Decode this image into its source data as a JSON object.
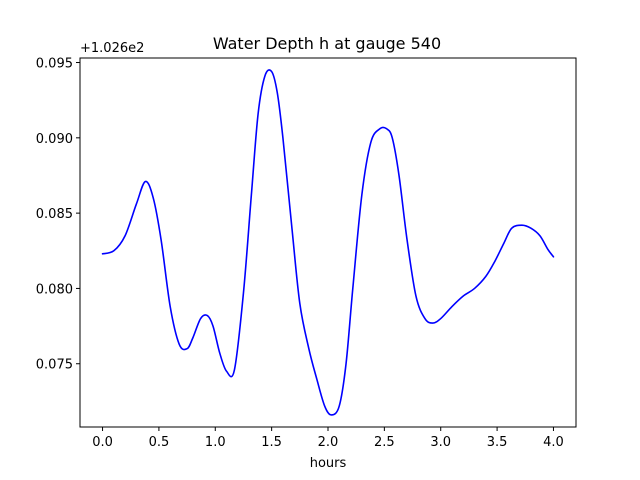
{
  "chart_data": {
    "type": "line",
    "title": "Water Depth h at gauge 540",
    "xlabel": "hours",
    "ylabel": "",
    "offset_text": "+1.026e2",
    "xlim": [
      -0.2,
      4.2
    ],
    "ylim": [
      0.0708,
      0.0953
    ],
    "xticks": [
      0.0,
      0.5,
      1.0,
      1.5,
      2.0,
      2.5,
      3.0,
      3.5,
      4.0
    ],
    "xtick_labels": [
      "0.0",
      "0.5",
      "1.0",
      "1.5",
      "2.0",
      "2.5",
      "3.0",
      "3.5",
      "4.0"
    ],
    "yticks": [
      0.075,
      0.08,
      0.085,
      0.09,
      0.095
    ],
    "ytick_labels": [
      "0.075",
      "0.080",
      "0.085",
      "0.090",
      "0.095"
    ],
    "grid": false,
    "series": [
      {
        "color": "#0000ff",
        "x": [
          0.0,
          0.1,
          0.2,
          0.3,
          0.38,
          0.45,
          0.52,
          0.6,
          0.68,
          0.75,
          0.8,
          0.87,
          0.93,
          0.98,
          1.04,
          1.1,
          1.17,
          1.25,
          1.32,
          1.38,
          1.44,
          1.5,
          1.55,
          1.6,
          1.68,
          1.75,
          1.83,
          1.9,
          1.97,
          2.03,
          2.1,
          2.16,
          2.22,
          2.3,
          2.38,
          2.46,
          2.52,
          2.57,
          2.63,
          2.7,
          2.78,
          2.86,
          2.93,
          3.0,
          3.1,
          3.2,
          3.3,
          3.4,
          3.48,
          3.56,
          3.63,
          3.72,
          3.8,
          3.88,
          3.95,
          4.0
        ],
        "y": [
          0.0823,
          0.0825,
          0.0835,
          0.0856,
          0.0871,
          0.086,
          0.0832,
          0.0788,
          0.0763,
          0.076,
          0.0767,
          0.078,
          0.0782,
          0.0775,
          0.0757,
          0.0745,
          0.0746,
          0.0797,
          0.0862,
          0.0916,
          0.0941,
          0.0944,
          0.093,
          0.09,
          0.084,
          0.079,
          0.076,
          0.074,
          0.0722,
          0.0716,
          0.0722,
          0.075,
          0.08,
          0.0862,
          0.0897,
          0.0906,
          0.0906,
          0.09,
          0.0875,
          0.0833,
          0.0795,
          0.078,
          0.0777,
          0.078,
          0.0788,
          0.0795,
          0.08,
          0.0808,
          0.0818,
          0.083,
          0.084,
          0.0842,
          0.084,
          0.0835,
          0.0826,
          0.0821
        ]
      }
    ]
  }
}
